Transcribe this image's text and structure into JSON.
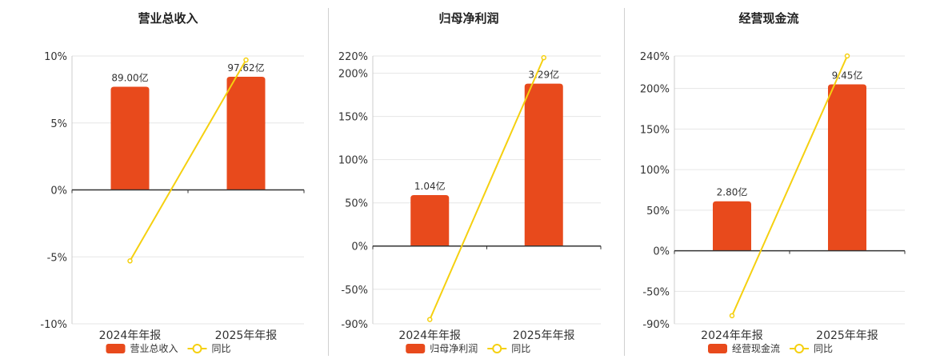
{
  "colors": {
    "bar": "#e84a1c",
    "line": "#f5d010",
    "axis": "#333333",
    "grid": "#e6e6e6",
    "tick": "#333333"
  },
  "legend": {
    "line_label": "同比"
  },
  "chart_data": [
    {
      "type": "bar",
      "title": "营业总收入",
      "categories": [
        "2024年年报",
        "2025年年报"
      ],
      "bar_legend": "营业总收入",
      "bar_labels": [
        "89.00亿",
        "97.62亿"
      ],
      "values": [
        7.7,
        8.45
      ],
      "line_values": [
        -5.3,
        9.7
      ],
      "ylim": [
        -10,
        10
      ],
      "yticks": [
        10,
        5,
        0,
        -5,
        -10
      ],
      "ytick_labels": [
        "10%",
        "5%",
        "0%",
        "-5%",
        "-10%"
      ],
      "legend_placement": "bottom"
    },
    {
      "type": "bar",
      "title": "归母净利润",
      "categories": [
        "2024年年报",
        "2025年年报"
      ],
      "bar_legend": "归母净利润",
      "bar_labels": [
        "1.04亿",
        "3.29亿"
      ],
      "values": [
        59,
        188
      ],
      "line_values": [
        -85,
        218
      ],
      "ylim": [
        -90,
        220
      ],
      "yticks": [
        220,
        200,
        150,
        100,
        50,
        0,
        -50,
        -90
      ],
      "ytick_labels": [
        "220%",
        "200%",
        "150%",
        "100%",
        "50%",
        "0%",
        "-50%",
        "-90%"
      ],
      "legend_placement": "bottom"
    },
    {
      "type": "bar",
      "title": "经营现金流",
      "categories": [
        "2024年年报",
        "2025年年报"
      ],
      "bar_legend": "经营现金流",
      "bar_labels": [
        "2.80亿",
        "9.45亿"
      ],
      "values": [
        61,
        205
      ],
      "line_values": [
        -80,
        240
      ],
      "ylim": [
        -90,
        240
      ],
      "yticks": [
        240,
        200,
        150,
        100,
        50,
        0,
        -50,
        -90
      ],
      "ytick_labels": [
        "240%",
        "200%",
        "150%",
        "100%",
        "50%",
        "0%",
        "-50%",
        "-90%"
      ],
      "legend_placement": "bottom"
    }
  ]
}
